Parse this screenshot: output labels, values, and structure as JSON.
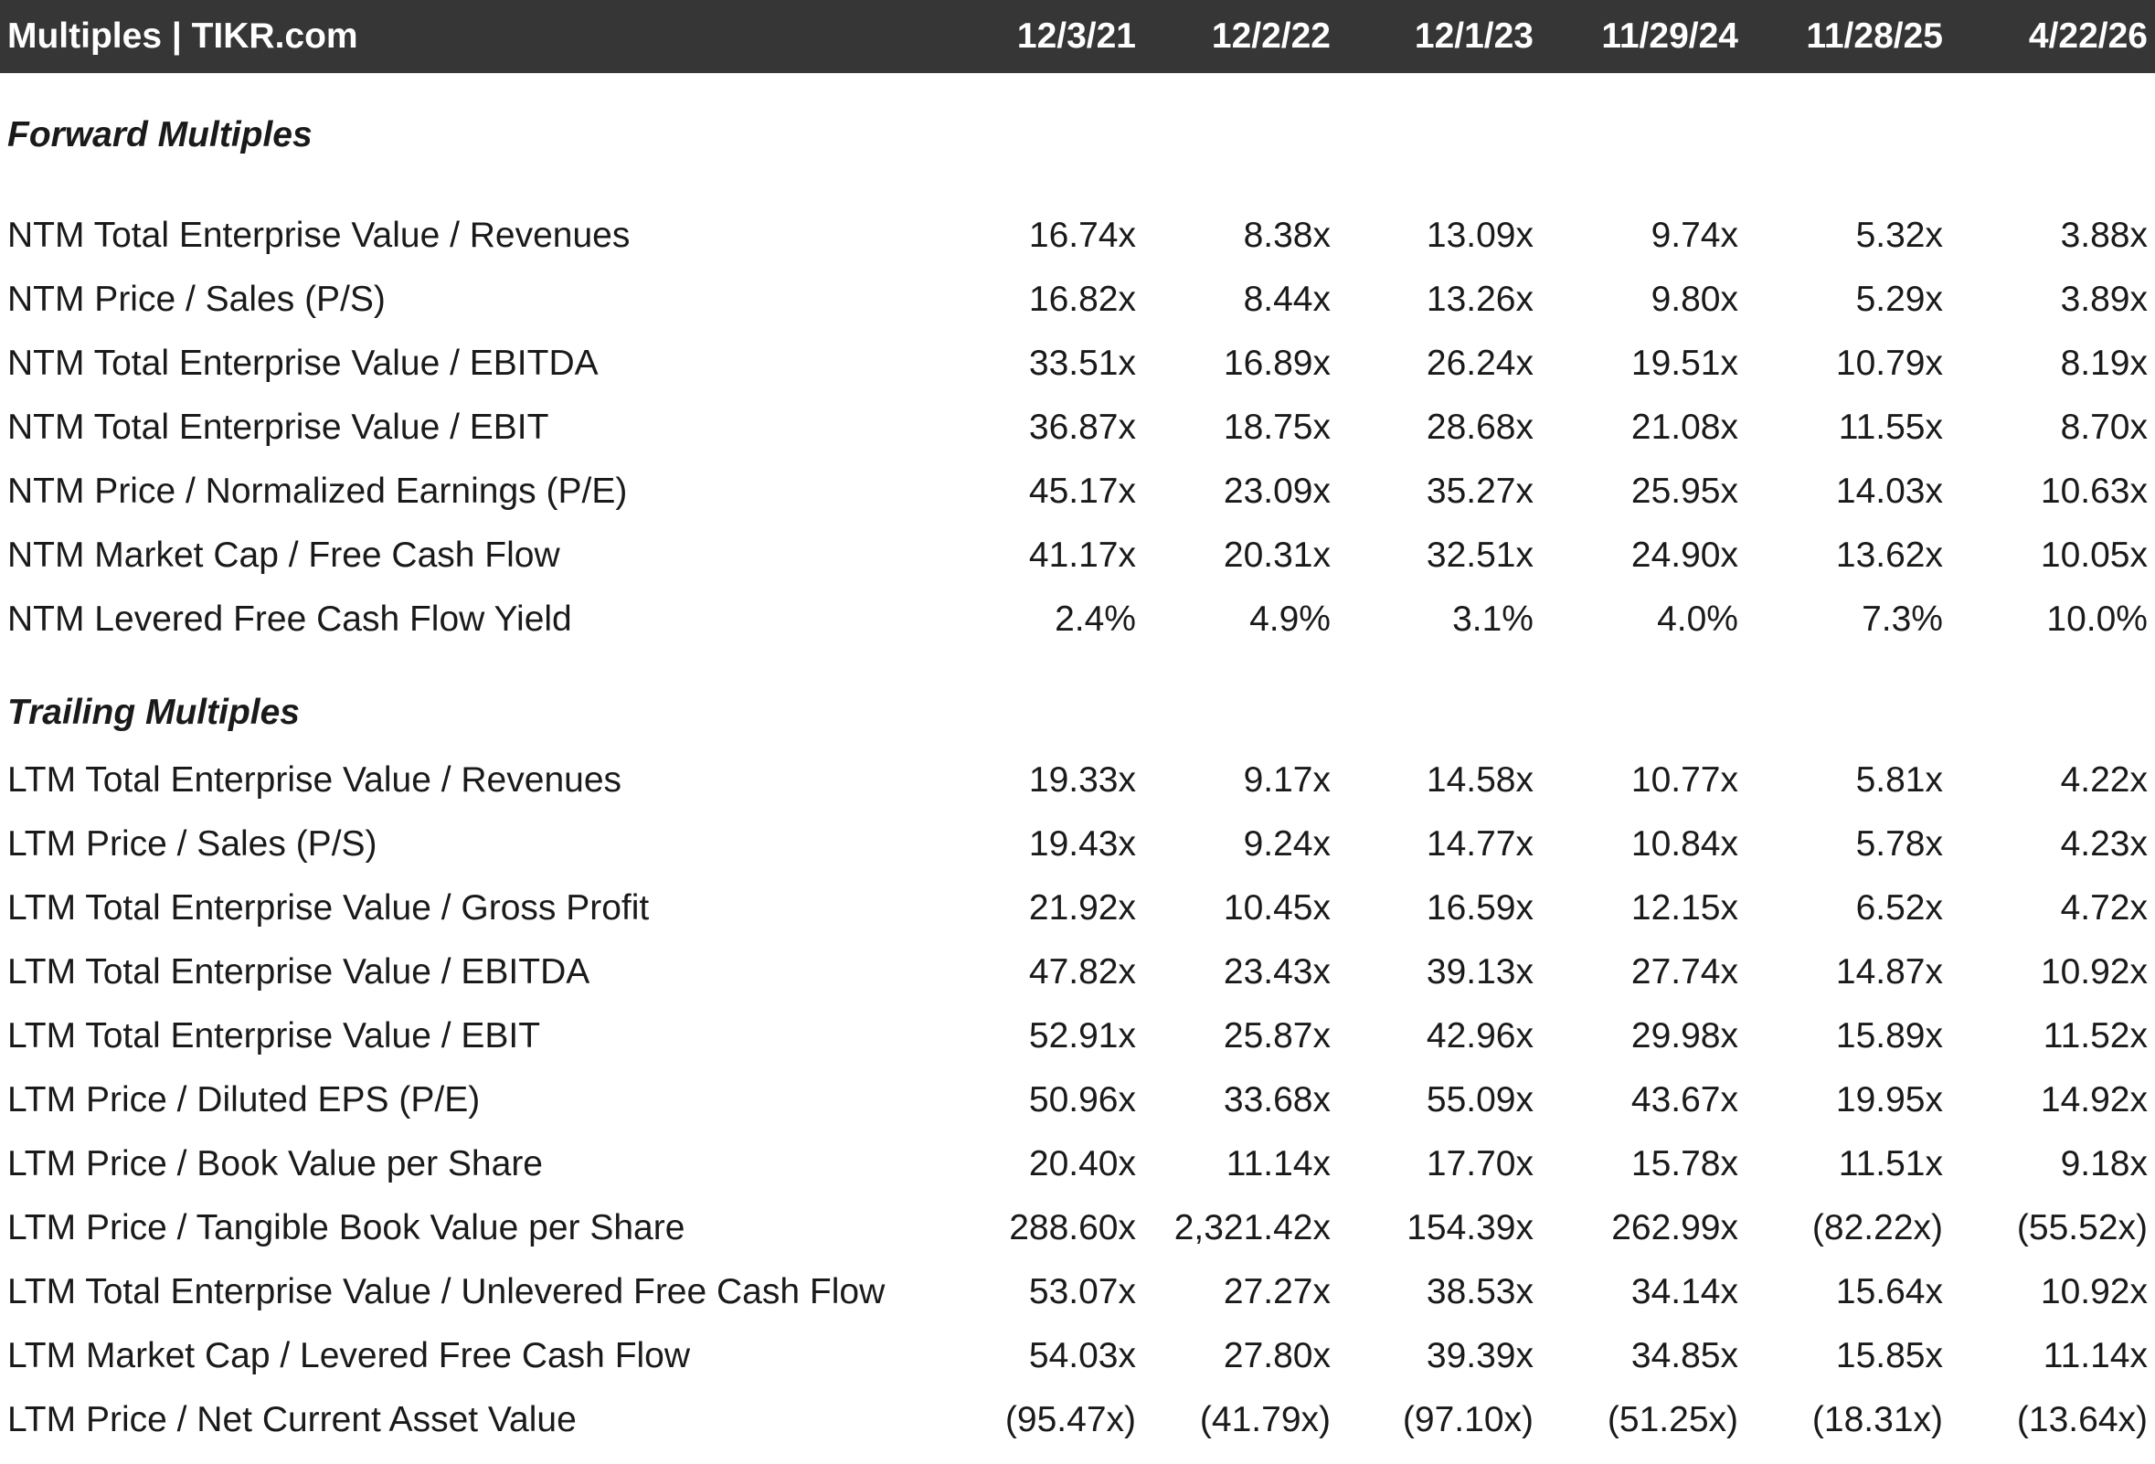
{
  "header": {
    "title": "Multiples | TIKR.com",
    "columns": [
      "12/3/21",
      "12/2/22",
      "12/1/23",
      "11/29/24",
      "11/28/25",
      "4/22/26"
    ]
  },
  "sections": [
    {
      "title": "Forward Multiples",
      "rows": [
        {
          "label": "NTM Total Enterprise Value / Revenues",
          "values": [
            "16.74x",
            "8.38x",
            "13.09x",
            "9.74x",
            "5.32x",
            "3.88x"
          ]
        },
        {
          "label": "NTM Price / Sales (P/S)",
          "values": [
            "16.82x",
            "8.44x",
            "13.26x",
            "9.80x",
            "5.29x",
            "3.89x"
          ]
        },
        {
          "label": "NTM Total Enterprise Value / EBITDA",
          "values": [
            "33.51x",
            "16.89x",
            "26.24x",
            "19.51x",
            "10.79x",
            "8.19x"
          ]
        },
        {
          "label": "NTM Total Enterprise Value / EBIT",
          "values": [
            "36.87x",
            "18.75x",
            "28.68x",
            "21.08x",
            "11.55x",
            "8.70x"
          ]
        },
        {
          "label": "NTM Price / Normalized Earnings (P/E)",
          "values": [
            "45.17x",
            "23.09x",
            "35.27x",
            "25.95x",
            "14.03x",
            "10.63x"
          ]
        },
        {
          "label": "NTM Market Cap / Free Cash Flow",
          "values": [
            "41.17x",
            "20.31x",
            "32.51x",
            "24.90x",
            "13.62x",
            "10.05x"
          ]
        },
        {
          "label": "NTM Levered Free Cash Flow Yield",
          "values": [
            "2.4%",
            "4.9%",
            "3.1%",
            "4.0%",
            "7.3%",
            "10.0%"
          ]
        }
      ]
    },
    {
      "title": "Trailing Multiples",
      "rows": [
        {
          "label": "LTM Total Enterprise Value / Revenues",
          "values": [
            "19.33x",
            "9.17x",
            "14.58x",
            "10.77x",
            "5.81x",
            "4.22x"
          ]
        },
        {
          "label": "LTM Price / Sales (P/S)",
          "values": [
            "19.43x",
            "9.24x",
            "14.77x",
            "10.84x",
            "5.78x",
            "4.23x"
          ]
        },
        {
          "label": "LTM Total Enterprise Value / Gross Profit",
          "values": [
            "21.92x",
            "10.45x",
            "16.59x",
            "12.15x",
            "6.52x",
            "4.72x"
          ]
        },
        {
          "label": "LTM Total Enterprise Value / EBITDA",
          "values": [
            "47.82x",
            "23.43x",
            "39.13x",
            "27.74x",
            "14.87x",
            "10.92x"
          ]
        },
        {
          "label": "LTM Total Enterprise Value / EBIT",
          "values": [
            "52.91x",
            "25.87x",
            "42.96x",
            "29.98x",
            "15.89x",
            "11.52x"
          ]
        },
        {
          "label": "LTM Price / Diluted EPS (P/E)",
          "values": [
            "50.96x",
            "33.68x",
            "55.09x",
            "43.67x",
            "19.95x",
            "14.92x"
          ]
        },
        {
          "label": "LTM Price / Book Value per Share",
          "values": [
            "20.40x",
            "11.14x",
            "17.70x",
            "15.78x",
            "11.51x",
            "9.18x"
          ]
        },
        {
          "label": "LTM Price / Tangible Book Value per Share",
          "values": [
            "288.60x",
            "2,321.42x",
            "154.39x",
            "262.99x",
            "(82.22x)",
            "(55.52x)"
          ]
        },
        {
          "label": "LTM Total Enterprise Value / Unlevered Free Cash Flow",
          "values": [
            "53.07x",
            "27.27x",
            "38.53x",
            "34.14x",
            "15.64x",
            "10.92x"
          ]
        },
        {
          "label": "LTM Market Cap / Levered Free Cash Flow",
          "values": [
            "54.03x",
            "27.80x",
            "39.39x",
            "34.85x",
            "15.85x",
            "11.14x"
          ]
        },
        {
          "label": "LTM Price / Net Current Asset Value",
          "values": [
            "(95.47x)",
            "(41.79x)",
            "(97.10x)",
            "(51.25x)",
            "(18.31x)",
            "(13.64x)"
          ]
        }
      ]
    }
  ]
}
